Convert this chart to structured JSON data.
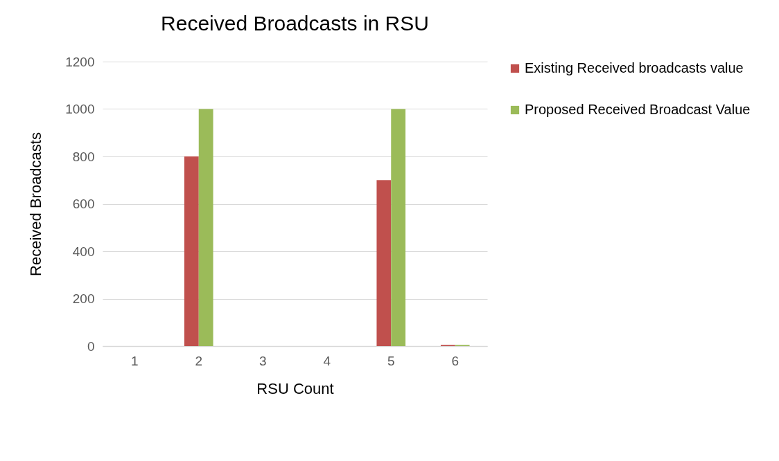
{
  "chart_data": {
    "type": "bar",
    "title": "Received Broadcasts in RSU",
    "xlabel": "RSU Count",
    "ylabel": "Received Broadcasts",
    "categories": [
      "1",
      "2",
      "3",
      "4",
      "5",
      "6"
    ],
    "series": [
      {
        "name": "Existing Received broadcasts value",
        "color": "#c0504d",
        "values": [
          0,
          800,
          0,
          0,
          700,
          5
        ]
      },
      {
        "name": "Proposed Received Broadcast Value",
        "color": "#9bbb59",
        "values": [
          0,
          1000,
          0,
          0,
          1000,
          5
        ]
      }
    ],
    "ylim": [
      0,
      1200
    ],
    "yticks": [
      0,
      200,
      400,
      600,
      800,
      1000,
      1200
    ],
    "grid": "y",
    "legend": "right"
  }
}
